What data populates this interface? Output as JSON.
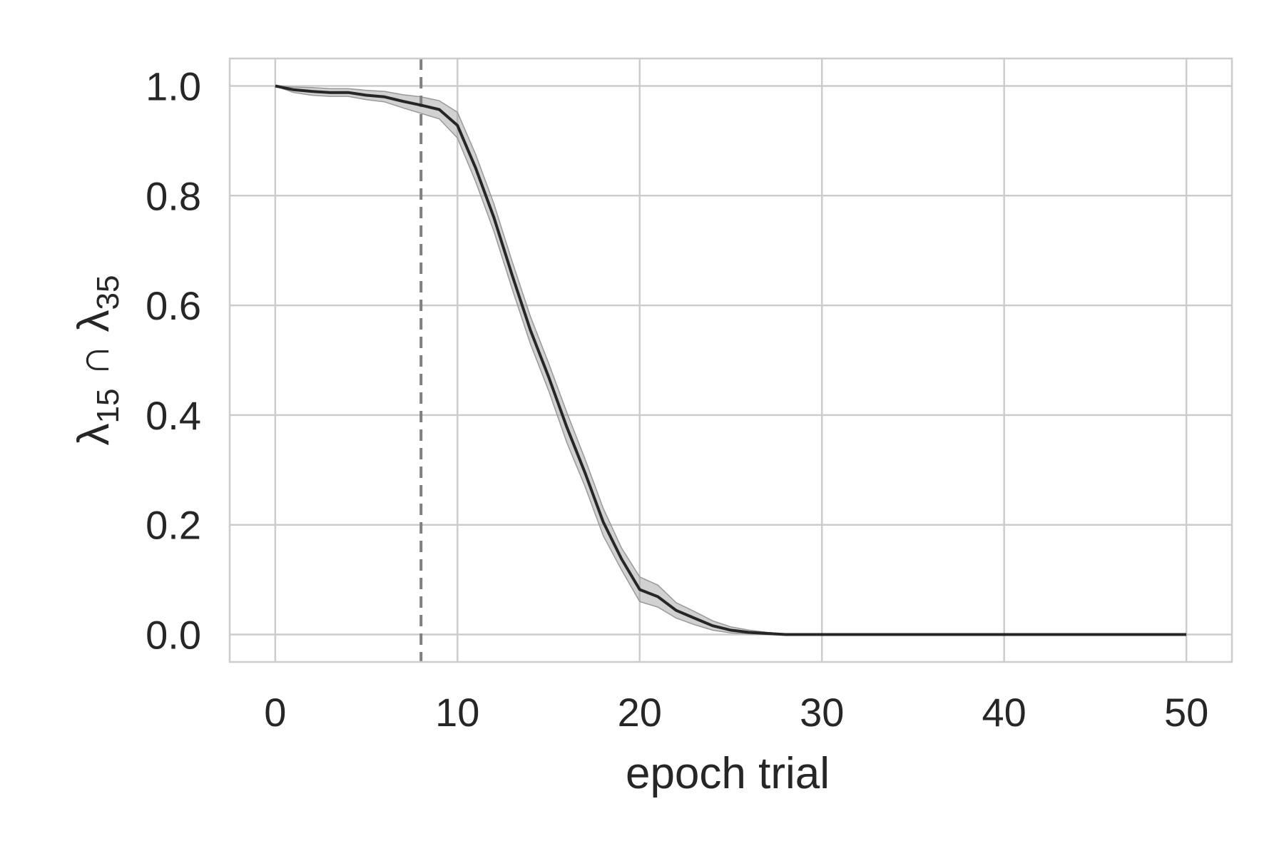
{
  "chart_data": {
    "type": "line",
    "title": "",
    "xlabel": "epoch trial",
    "ylabel_parts": {
      "lambda1": "λ",
      "sub1": "15",
      "op": " ∩ ",
      "lambda2": "λ",
      "sub2": "35"
    },
    "xlim": [
      -2.5,
      52.5
    ],
    "ylim": [
      -0.05,
      1.05
    ],
    "xticks": [
      0,
      10,
      20,
      30,
      40,
      50
    ],
    "xtick_labels": [
      "0",
      "10",
      "20",
      "30",
      "40",
      "50"
    ],
    "yticks": [
      0.0,
      0.2,
      0.4,
      0.6,
      0.8,
      1.0
    ],
    "ytick_labels": [
      "0.0",
      "0.2",
      "0.4",
      "0.6",
      "0.8",
      "1.0"
    ],
    "grid": true,
    "vline": {
      "x": 8,
      "style": "dashed",
      "color": "#808080"
    },
    "series": [
      {
        "color": "#262626",
        "band_color": "#999999",
        "x": [
          0,
          1,
          2,
          3,
          4,
          5,
          6,
          7,
          8,
          9,
          10,
          11,
          12,
          13,
          14,
          15,
          16,
          17,
          18,
          19,
          20,
          21,
          22,
          23,
          24,
          25,
          26,
          27,
          28,
          29,
          30,
          31,
          32,
          33,
          34,
          35,
          36,
          37,
          38,
          39,
          40,
          41,
          42,
          43,
          44,
          45,
          46,
          47,
          48,
          49,
          50
        ],
        "y": [
          1.0,
          0.993,
          0.99,
          0.988,
          0.988,
          0.983,
          0.98,
          0.972,
          0.965,
          0.957,
          0.928,
          0.85,
          0.76,
          0.655,
          0.555,
          0.47,
          0.378,
          0.295,
          0.205,
          0.138,
          0.082,
          0.069,
          0.044,
          0.03,
          0.016,
          0.008,
          0.004,
          0.002,
          0.0,
          0.0,
          0.0,
          0.0,
          0.0,
          0.0,
          0.0,
          0.0,
          0.0,
          0.0,
          0.0,
          0.0,
          0.0,
          0.0,
          0.0,
          0.0,
          0.0,
          0.0,
          0.0,
          0.0,
          0.0,
          0.0,
          0.0
        ],
        "band_low": [
          1.0,
          0.988,
          0.983,
          0.981,
          0.981,
          0.975,
          0.971,
          0.96,
          0.95,
          0.94,
          0.905,
          0.825,
          0.735,
          0.63,
          0.53,
          0.445,
          0.35,
          0.27,
          0.18,
          0.118,
          0.06,
          0.05,
          0.03,
          0.018,
          0.008,
          0.003,
          0.001,
          0.0,
          0.0,
          0.0,
          0.0,
          0.0,
          0.0,
          0.0,
          0.0,
          0.0,
          0.0,
          0.0,
          0.0,
          0.0,
          0.0,
          0.0,
          0.0,
          0.0,
          0.0,
          0.0,
          0.0,
          0.0,
          0.0,
          0.0,
          0.0
        ],
        "band_high": [
          1.0,
          0.998,
          0.997,
          0.995,
          0.995,
          0.992,
          0.99,
          0.984,
          0.98,
          0.973,
          0.952,
          0.875,
          0.785,
          0.68,
          0.58,
          0.495,
          0.405,
          0.32,
          0.23,
          0.158,
          0.105,
          0.09,
          0.058,
          0.042,
          0.025,
          0.014,
          0.008,
          0.004,
          0.001,
          0.0,
          0.0,
          0.0,
          0.0,
          0.0,
          0.0,
          0.0,
          0.0,
          0.0,
          0.0,
          0.0,
          0.0,
          0.0,
          0.0,
          0.0,
          0.0,
          0.0,
          0.0,
          0.0,
          0.0,
          0.0,
          0.0
        ]
      }
    ]
  }
}
